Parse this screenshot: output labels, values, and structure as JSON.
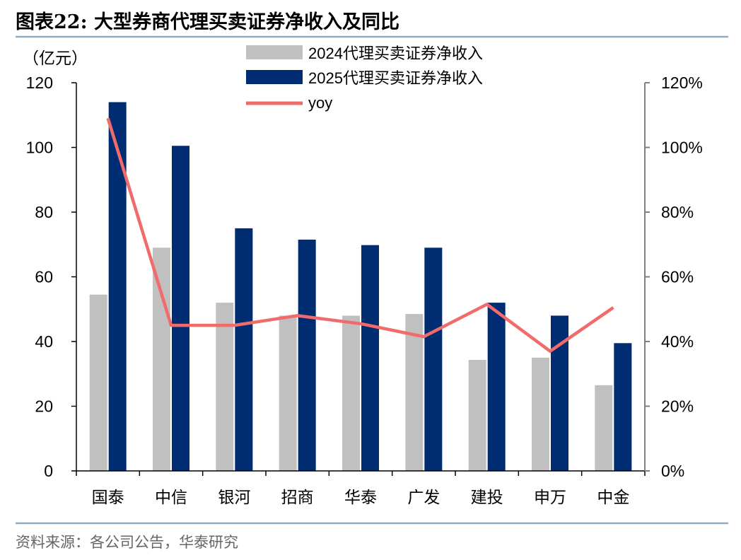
{
  "title": "图表22:   大型券商代理买卖证券净收入及同比",
  "unit_label": "（亿元）",
  "source": "资料来源：各公司公告，华泰研究",
  "colors": {
    "series_2024": "#c0c0c0",
    "series_2025": "#002d72",
    "yoy_line": "#f26b6b",
    "rule": "#8fa9c4",
    "right_axis": "#808080"
  },
  "chart_data": {
    "type": "bar",
    "categories": [
      "国泰",
      "中信",
      "银河",
      "招商",
      "华泰",
      "广发",
      "建投",
      "申万",
      "中金"
    ],
    "series": [
      {
        "name": "2024代理买卖证券净收入",
        "type": "bar",
        "values": [
          54.5,
          69.0,
          52.0,
          48.0,
          48.0,
          48.5,
          34.3,
          35.0,
          26.5
        ]
      },
      {
        "name": "2025代理买卖证券净收入",
        "type": "bar",
        "values": [
          114.0,
          100.5,
          75.0,
          71.5,
          69.8,
          69.0,
          52.0,
          48.0,
          39.5
        ]
      },
      {
        "name": "yoy",
        "type": "line",
        "axis": "right",
        "values": [
          1.09,
          0.45,
          0.45,
          0.48,
          0.455,
          0.415,
          0.515,
          0.37,
          0.505
        ]
      }
    ],
    "y_left": {
      "ylim": [
        0,
        120
      ],
      "ticks": [
        0,
        20,
        40,
        60,
        80,
        100,
        120
      ],
      "tick_labels": [
        "0",
        "20",
        "40",
        "60",
        "80",
        "100",
        "120"
      ]
    },
    "y_right": {
      "ylim": [
        0,
        1.2
      ],
      "ticks": [
        0,
        0.2,
        0.4,
        0.6,
        0.8,
        1.0,
        1.2
      ],
      "tick_labels": [
        "0%",
        "20%",
        "40%",
        "60%",
        "80%",
        "100%",
        "120%"
      ]
    },
    "legend": [
      "2024代理买卖证券净收入",
      "2025代理买卖证券净收入",
      "yoy"
    ],
    "legend_position": "top-center"
  }
}
